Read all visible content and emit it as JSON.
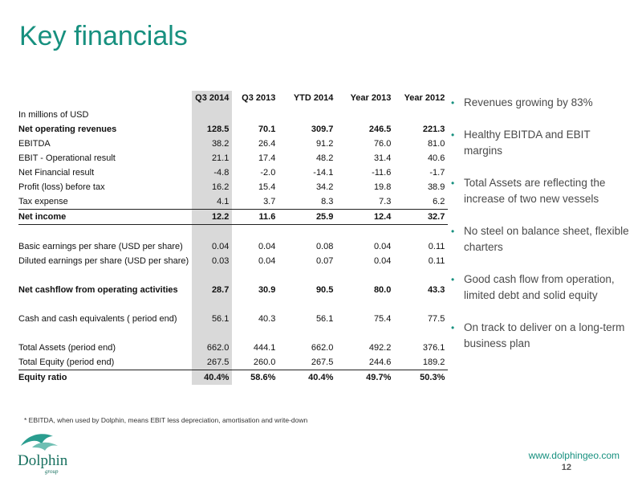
{
  "title": "Key financials",
  "table": {
    "headers": [
      "Q3 2014",
      "Q3 2013",
      "YTD 2014",
      "Year 2013",
      "Year 2012"
    ],
    "unit_label": "In millions of USD",
    "rows": [
      {
        "label": "Net operating revenues",
        "values": [
          "128.5",
          "70.1",
          "309.7",
          "246.5",
          "221.3"
        ]
      },
      {
        "label": "EBITDA",
        "values": [
          "38.2",
          "26.4",
          "91.2",
          "76.0",
          "81.0"
        ]
      },
      {
        "label": "EBIT - Operational result",
        "values": [
          "21.1",
          "17.4",
          "48.2",
          "31.4",
          "40.6"
        ]
      },
      {
        "label": "Net Financial result",
        "values": [
          "-4.8",
          "-2.0",
          "-14.1",
          "-11.6",
          "-1.7"
        ]
      },
      {
        "label": "Profit (loss) before tax",
        "values": [
          "16.2",
          "15.4",
          "34.2",
          "19.8",
          "38.9"
        ]
      },
      {
        "label": "Tax expense",
        "values": [
          "4.1",
          "3.7",
          "8.3",
          "7.3",
          "6.2"
        ]
      },
      {
        "label": "Net income",
        "values": [
          "12.2",
          "11.6",
          "25.9",
          "12.4",
          "32.7"
        ]
      },
      {
        "label": "Basic earnings per share (USD per share)",
        "values": [
          "0.04",
          "0.04",
          "0.08",
          "0.04",
          "0.11"
        ]
      },
      {
        "label": "Diluted earnings per share (USD per share)",
        "values": [
          "0.03",
          "0.04",
          "0.07",
          "0.04",
          "0.11"
        ]
      },
      {
        "label": "Net cashflow from operating activities",
        "values": [
          "28.7",
          "30.9",
          "90.5",
          "80.0",
          "43.3"
        ]
      },
      {
        "label": "Cash and cash equivalents ( period end)",
        "values": [
          "56.1",
          "40.3",
          "56.1",
          "75.4",
          "77.5"
        ]
      },
      {
        "label": "Total Assets (period end)",
        "values": [
          "662.0",
          "444.1",
          "662.0",
          "492.2",
          "376.1"
        ]
      },
      {
        "label": "Total Equity (period end)",
        "values": [
          "267.5",
          "260.0",
          "267.5",
          "244.6",
          "189.2"
        ]
      },
      {
        "label": "Equity ratio",
        "values": [
          "40.4%",
          "58.6%",
          "40.4%",
          "49.7%",
          "50.3%"
        ]
      }
    ]
  },
  "bullets": [
    "Revenues growing by 83%",
    "Healthy  EBITDA and EBIT margins",
    "Total Assets  are reflecting the increase of two new vessels",
    "No steel on balance sheet, flexible charters",
    "Good cash flow from operation, limited debt and solid equity",
    "On track to deliver on a long-term business plan"
  ],
  "footnote": "* EBITDA, when used by Dolphin, means EBIT less depreciation, amortisation and write-down",
  "logo": {
    "name": "Dolphin",
    "sub": "group"
  },
  "website": "www.dolphingeo.com",
  "page_number": "12",
  "colors": {
    "accent": "#17907f",
    "highlight_column": "#d9d9d9"
  }
}
